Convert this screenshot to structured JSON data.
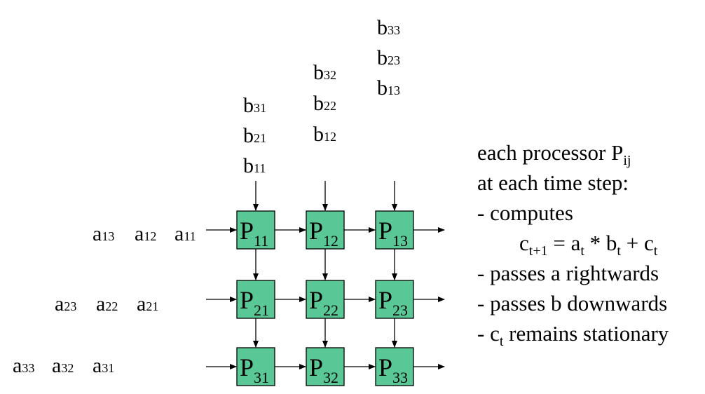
{
  "processors": [
    [
      {
        "letter": "P",
        "index": "11"
      },
      {
        "letter": "P",
        "index": "12"
      },
      {
        "letter": "P",
        "index": "13"
      }
    ],
    [
      {
        "letter": "P",
        "index": "21"
      },
      {
        "letter": "P",
        "index": "22"
      },
      {
        "letter": "P",
        "index": "23"
      }
    ],
    [
      {
        "letter": "P",
        "index": "31"
      },
      {
        "letter": "P",
        "index": "32"
      },
      {
        "letter": "P",
        "index": "33"
      }
    ]
  ],
  "a_inputs": [
    [
      {
        "letter": "a",
        "index": "13"
      },
      {
        "letter": "a",
        "index": "12"
      },
      {
        "letter": "a",
        "index": "11"
      }
    ],
    [
      {
        "letter": "a",
        "index": "23"
      },
      {
        "letter": "a",
        "index": "22"
      },
      {
        "letter": "a",
        "index": "21"
      }
    ],
    [
      {
        "letter": "a",
        "index": "33"
      },
      {
        "letter": "a",
        "index": "32"
      },
      {
        "letter": "a",
        "index": "31"
      }
    ]
  ],
  "b_inputs": [
    [
      {
        "letter": "b",
        "index": "31"
      },
      {
        "letter": "b",
        "index": "21"
      },
      {
        "letter": "b",
        "index": "11"
      }
    ],
    [
      {
        "letter": "b",
        "index": "32"
      },
      {
        "letter": "b",
        "index": "22"
      },
      {
        "letter": "b",
        "index": "12"
      }
    ],
    [
      {
        "letter": "b",
        "index": "33"
      },
      {
        "letter": "b",
        "index": "23"
      },
      {
        "letter": "b",
        "index": "13"
      }
    ]
  ],
  "description": {
    "line1": "each processor P",
    "line1_sub": "ij",
    "line2": "at each time step:",
    "line3": "- computes",
    "formula": {
      "c": "c",
      "c_sub": "t+1",
      "eq": " = a",
      "a_sub": "t",
      "mul": " * b",
      "b_sub": "t",
      "plus": " + c",
      "c2_sub": "t"
    },
    "line5": "- passes a rightwards",
    "line6": "- passes b downwards",
    "line7_pre": "- c",
    "line7_sub": "t",
    "line7_post": " remains stationary"
  },
  "colors": {
    "processor_fill": "#5ac896",
    "line": "#000000"
  }
}
